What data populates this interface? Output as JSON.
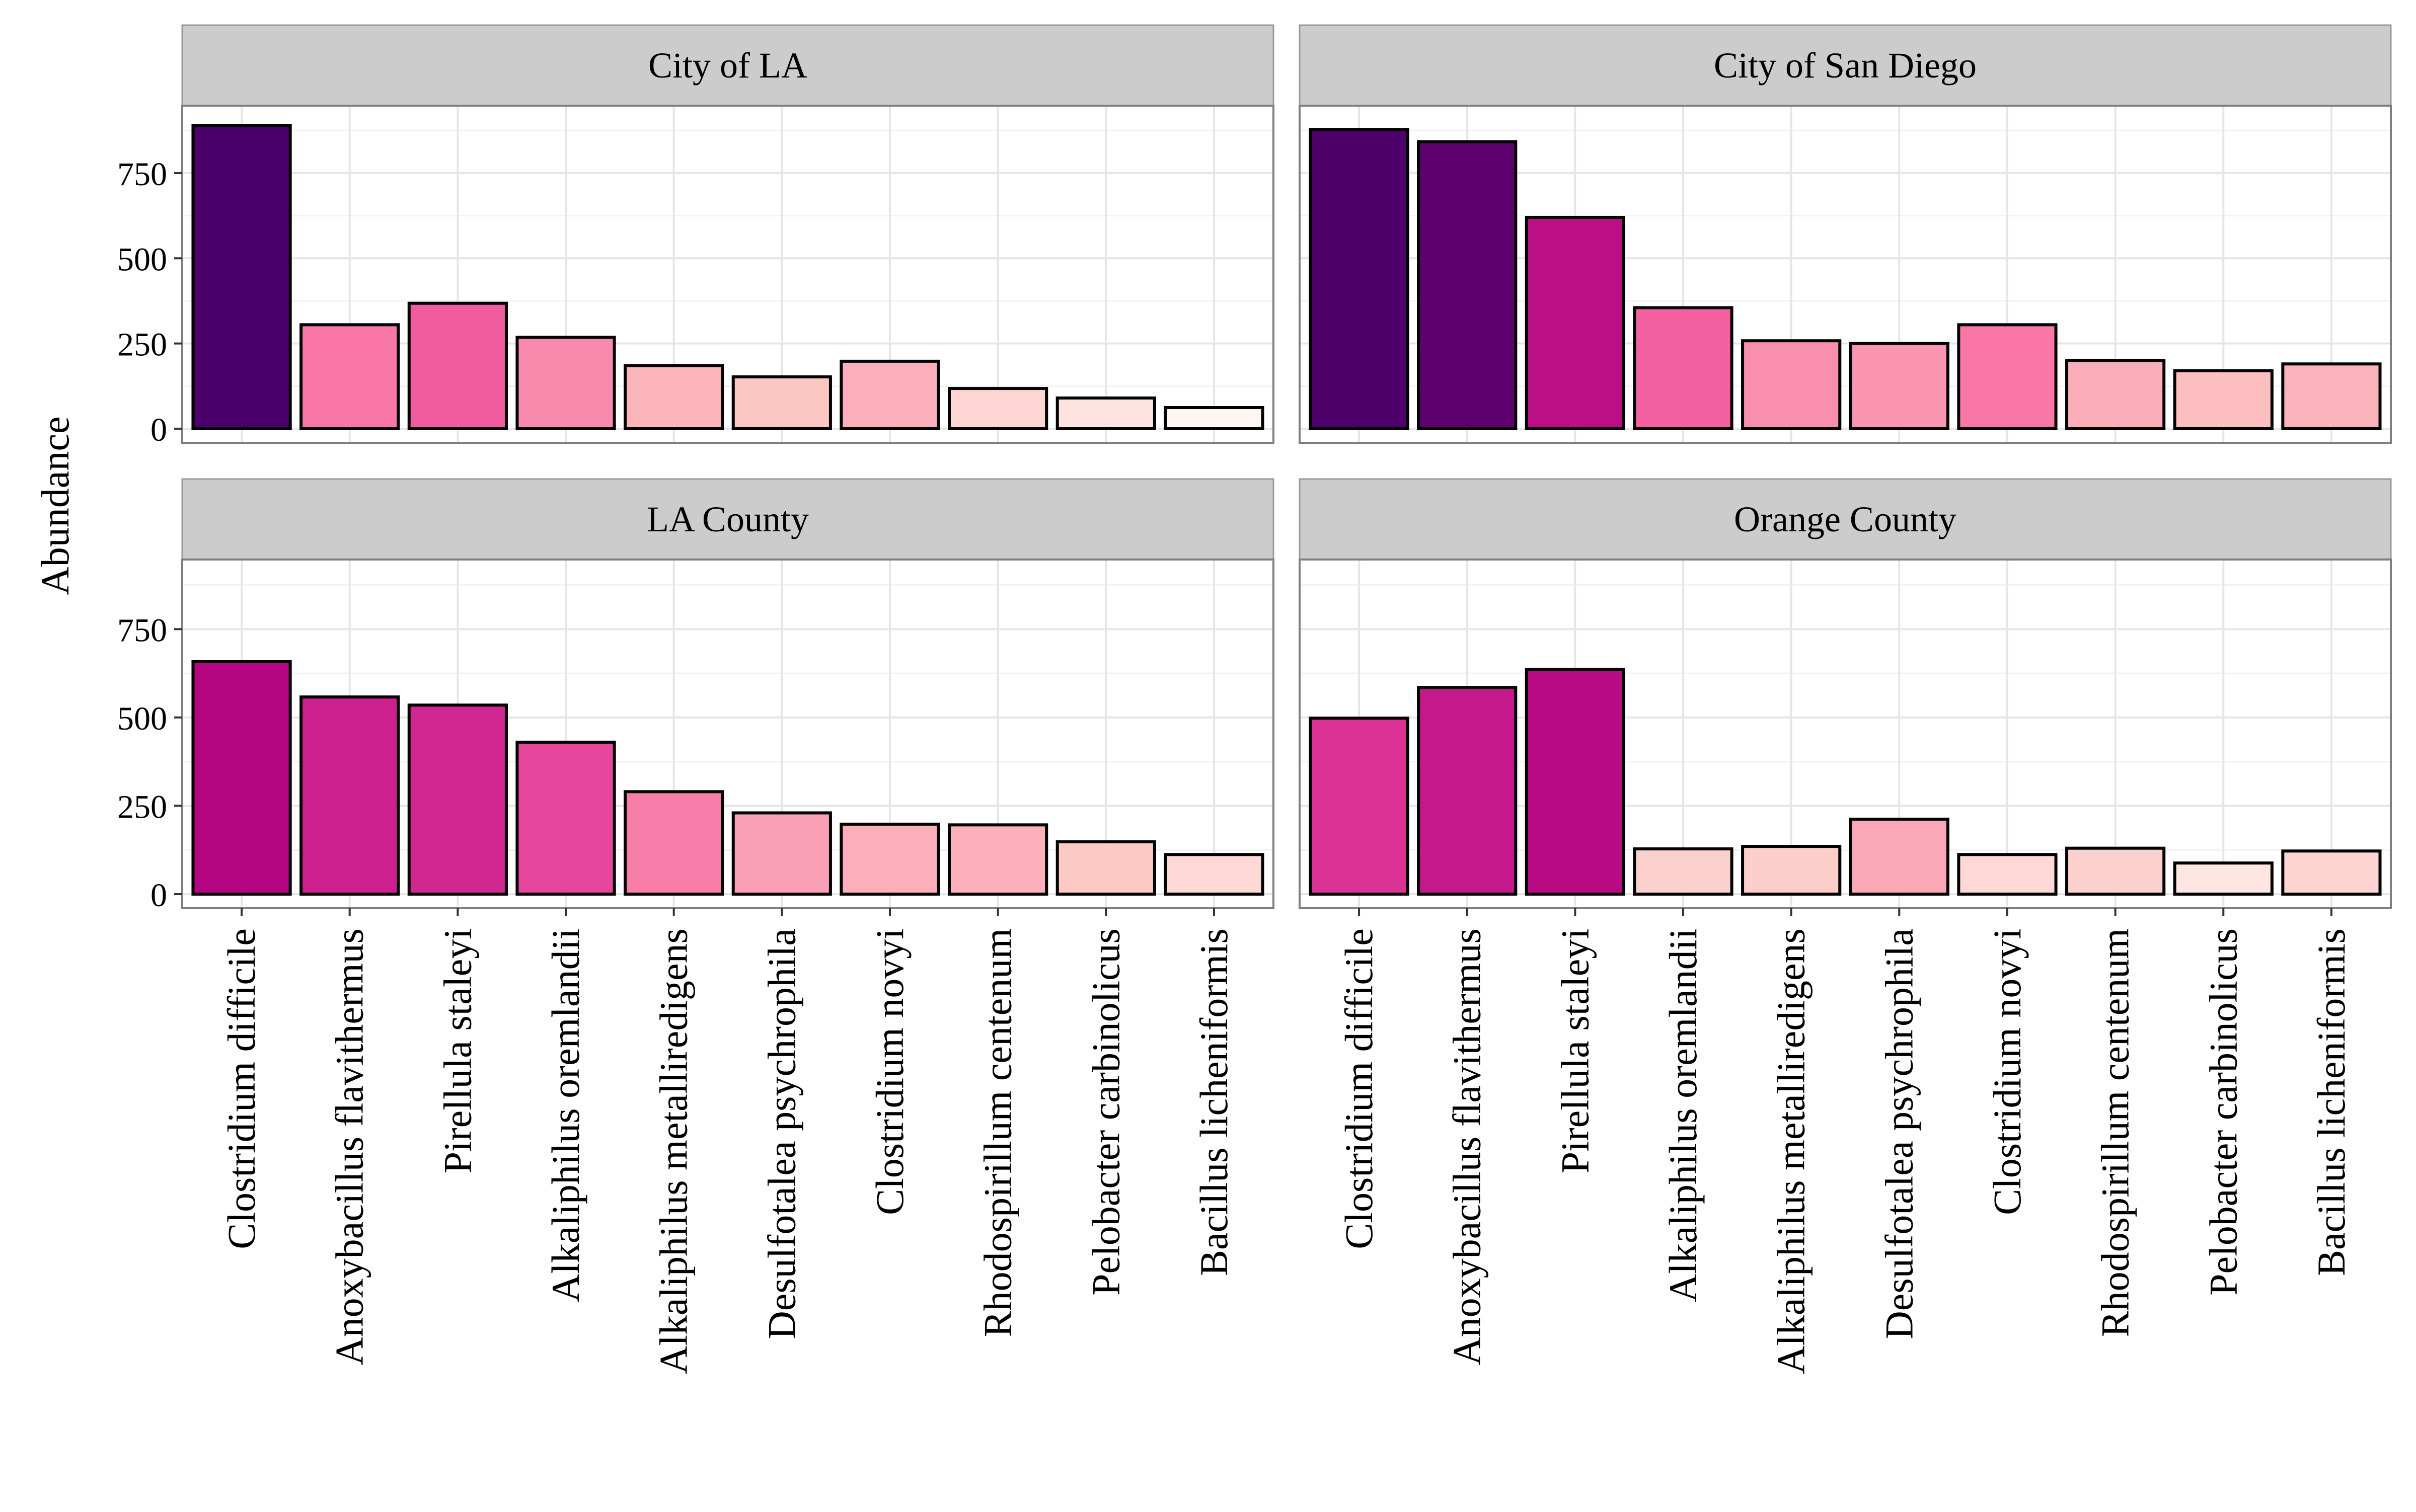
{
  "chart_data": {
    "type": "bar",
    "layout": "facet-grid 2x2, shared axes",
    "ylabel": "Abundance",
    "xlabel": "",
    "ylim": [
      0,
      930
    ],
    "yticks": [
      0,
      250,
      500,
      750
    ],
    "grid": true,
    "legend": "none",
    "categories": [
      "Clostridium difficile",
      "Anoxybacillus flavithermus",
      "Pirellula staleyi",
      "Alkaliphilus oremlandii",
      "Alkaliphilus metalliredigens",
      "Desulfotalea psychrophila",
      "Clostridium novyi",
      "Rhodospirillum centenum",
      "Pelobacter carbinolicus",
      "Bacillus licheniformis"
    ],
    "fill_scale": {
      "low": "#fff7f3",
      "high": "#49006a",
      "domain": [
        60,
        890
      ]
    },
    "panels": [
      {
        "title": "City of LA",
        "values": [
          890,
          305,
          368,
          268,
          185,
          152,
          198,
          118,
          90,
          62
        ]
      },
      {
        "title": "City of San Diego",
        "values": [
          878,
          842,
          620,
          355,
          258,
          250,
          305,
          200,
          170,
          190
        ]
      },
      {
        "title": "LA County",
        "values": [
          658,
          558,
          535,
          430,
          290,
          230,
          198,
          196,
          148,
          112
        ]
      },
      {
        "title": "Orange County",
        "values": [
          498,
          585,
          636,
          128,
          135,
          212,
          112,
          130,
          88,
          122
        ]
      }
    ]
  }
}
